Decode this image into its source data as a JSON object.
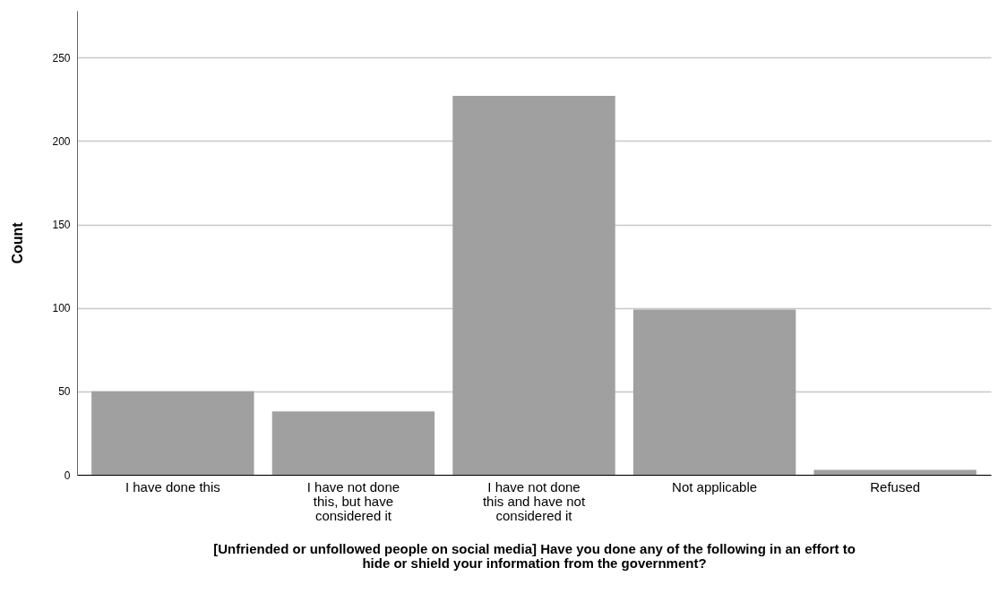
{
  "chart_data": {
    "type": "bar",
    "xlabel": "[Unfriended or unfollowed people on social media] Have you done any of the following in an effort to hide or shield your information from the government?",
    "ylabel": "Count",
    "categories": [
      "I have done this",
      "I have not done this, but have considered it",
      "I have not done this and have not considered it",
      "Not applicable",
      "Refused"
    ],
    "values": [
      50,
      38,
      227,
      99,
      3
    ],
    "color": "#a0a0a0",
    "ylim": [
      0,
      278
    ],
    "yticks": [
      0,
      50,
      100,
      150,
      200,
      250
    ],
    "grid": "y"
  }
}
